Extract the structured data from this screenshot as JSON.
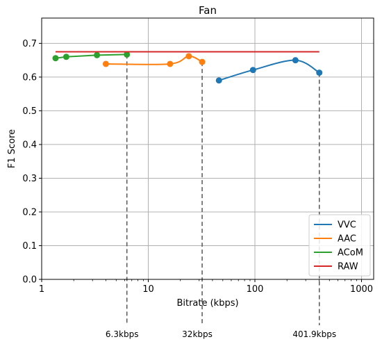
{
  "chart_data": {
    "type": "line",
    "title": "Fan",
    "xlabel": "Bitrate (kbps)",
    "ylabel": "F1 Score",
    "xscale": "log",
    "xlim": [
      1,
      1300
    ],
    "ylim": [
      0,
      0.775
    ],
    "xticks": [
      {
        "value": 1,
        "label": "1"
      },
      {
        "value": 10,
        "label": "10"
      },
      {
        "value": 100,
        "label": "100"
      },
      {
        "value": 1000,
        "label": "1000"
      }
    ],
    "yticks": [
      {
        "value": 0.0,
        "label": "0.0"
      },
      {
        "value": 0.1,
        "label": "0.1"
      },
      {
        "value": 0.2,
        "label": "0.2"
      },
      {
        "value": 0.3,
        "label": "0.3"
      },
      {
        "value": 0.4,
        "label": "0.4"
      },
      {
        "value": 0.5,
        "label": "0.5"
      },
      {
        "value": 0.6,
        "label": "0.6"
      },
      {
        "value": 0.7,
        "label": "0.7"
      }
    ],
    "grid": true,
    "legend_position": "lower-right",
    "series": [
      {
        "name": "VVC",
        "color": "#1f77b4",
        "smooth": true,
        "markers": true,
        "x": [
          46,
          96,
          240,
          401.9
        ],
        "y": [
          0.59,
          0.621,
          0.65,
          0.613
        ]
      },
      {
        "name": "AAC",
        "color": "#ff7f0e",
        "smooth": true,
        "markers": true,
        "x": [
          4.0,
          16,
          24,
          32
        ],
        "y": [
          0.639,
          0.639,
          0.662,
          0.645
        ]
      },
      {
        "name": "ACoM",
        "color": "#2ca02c",
        "smooth": false,
        "markers": true,
        "x": [
          1.35,
          1.7,
          3.3,
          6.3
        ],
        "y": [
          0.656,
          0.66,
          0.665,
          0.667
        ]
      },
      {
        "name": "RAW",
        "color": "#d62728",
        "smooth": false,
        "markers": false,
        "x": [
          1.35,
          401.9
        ],
        "y": [
          0.675,
          0.675
        ]
      }
    ],
    "annotations": [
      {
        "x": 6.3,
        "label": "6.3kbps"
      },
      {
        "x": 32,
        "label": "32kbps"
      },
      {
        "x": 401.9,
        "label": "401.9kbps"
      }
    ]
  }
}
